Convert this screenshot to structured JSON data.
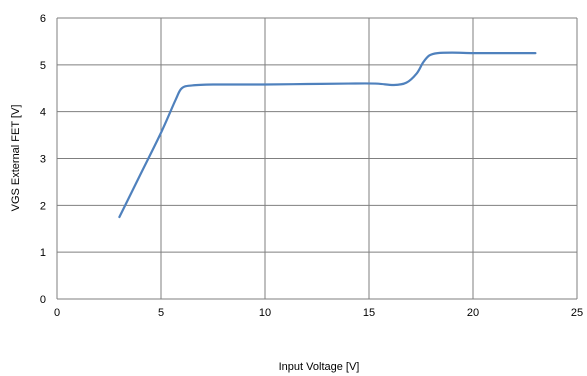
{
  "chart_data": {
    "type": "line",
    "title": "",
    "xlabel": "Input Voltage [V]",
    "ylabel": "VGS External FET [V]",
    "xlim": [
      0,
      25
    ],
    "ylim": [
      0,
      6
    ],
    "xticks": [
      "0",
      "5",
      "10",
      "15",
      "20",
      "25"
    ],
    "yticks": [
      "0",
      "1",
      "2",
      "3",
      "4",
      "5",
      "6"
    ],
    "grid": true,
    "legend": "none",
    "series": [
      {
        "color": "#4f81bd",
        "x": [
          3.0,
          4.0,
          5.0,
          5.7,
          6.0,
          6.5,
          7.5,
          10,
          12,
          14,
          15.3,
          16.2,
          16.8,
          17.3,
          17.6,
          17.9,
          18.3,
          19.0,
          20,
          21,
          22,
          23.0
        ],
        "y": [
          1.75,
          2.65,
          3.55,
          4.25,
          4.5,
          4.56,
          4.58,
          4.58,
          4.59,
          4.6,
          4.6,
          4.57,
          4.62,
          4.82,
          5.05,
          5.2,
          5.25,
          5.26,
          5.25,
          5.25,
          5.25,
          5.25
        ]
      }
    ]
  }
}
